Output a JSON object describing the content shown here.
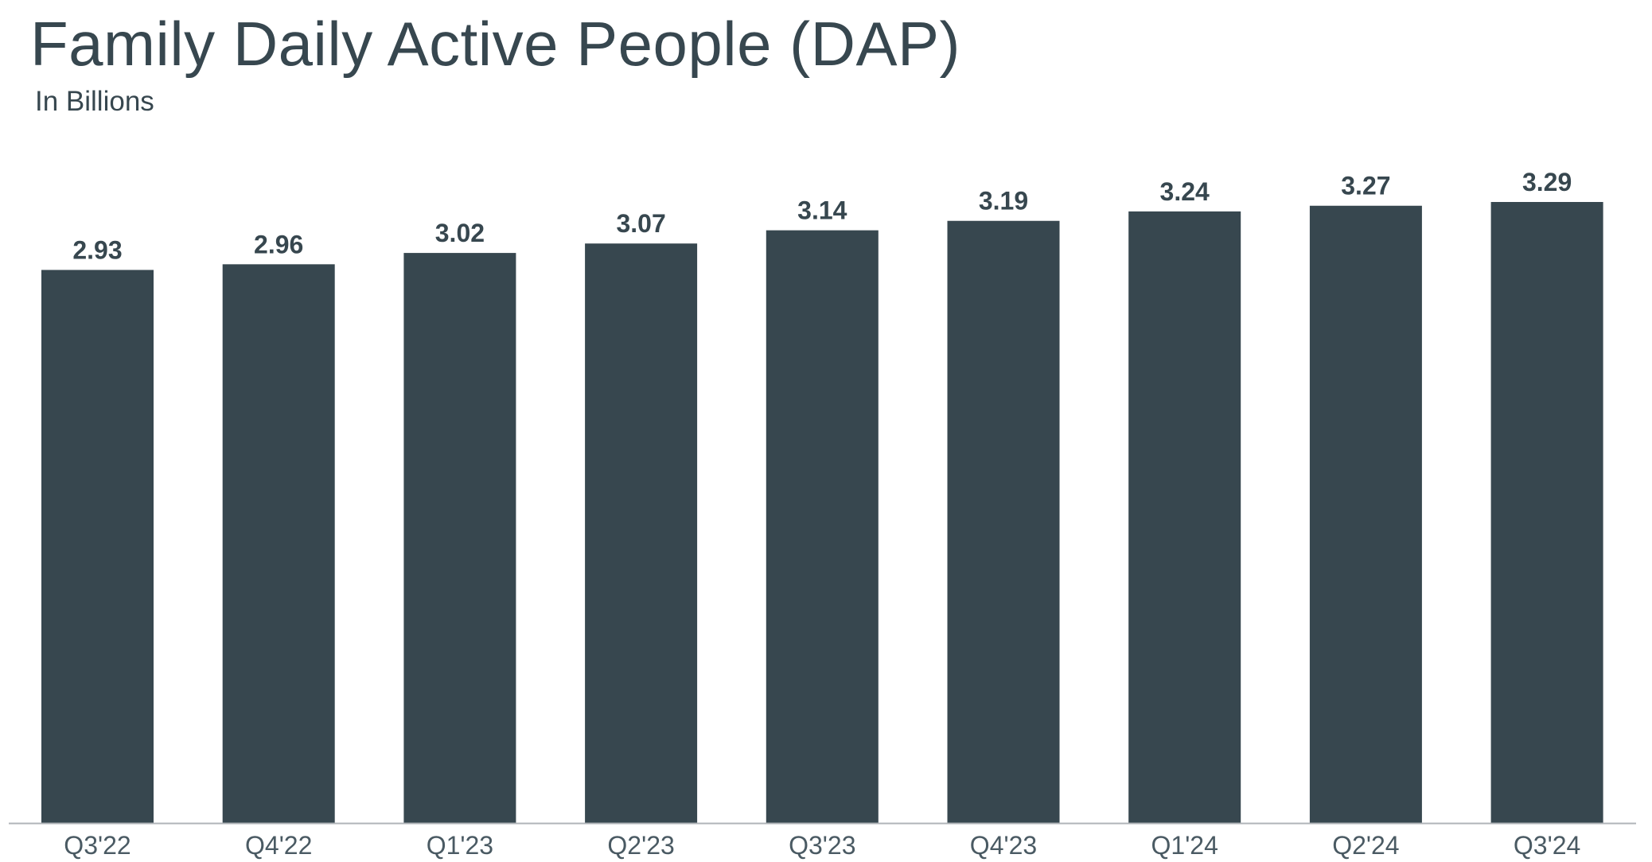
{
  "chart_data": {
    "type": "bar",
    "title": "Family Daily Active People (DAP)",
    "subtitle": "In Billions",
    "xlabel": "",
    "ylabel": "",
    "categories": [
      "Q3'22",
      "Q4'22",
      "Q1'23",
      "Q2'23",
      "Q3'23",
      "Q4'23",
      "Q1'24",
      "Q2'24",
      "Q3'24"
    ],
    "values": [
      2.93,
      2.96,
      3.02,
      3.07,
      3.14,
      3.19,
      3.24,
      3.27,
      3.29
    ],
    "value_labels": [
      "2.93",
      "2.96",
      "3.02",
      "3.07",
      "3.14",
      "3.19",
      "3.24",
      "3.27",
      "3.29"
    ],
    "ylim": [
      0,
      3.29
    ],
    "grid": false,
    "legend": "none",
    "colors": {
      "bar": "#37474f",
      "text": "#37474f",
      "axis": "#b0b4b8"
    }
  }
}
